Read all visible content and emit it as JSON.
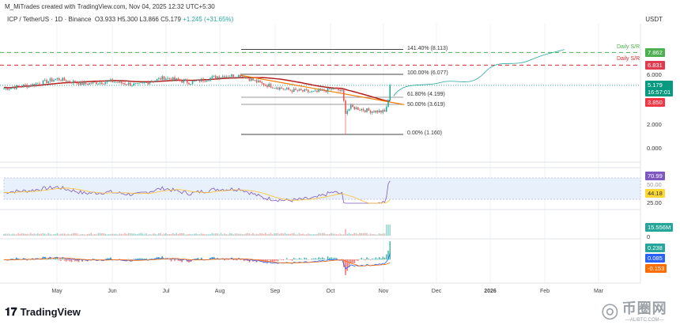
{
  "header": {
    "credit": "M_MiTrades created with TradingView.com, Nov 04, 2025 12:32 UTC+5:30",
    "symbol": "ICP / TetherUS · 1D · Binance",
    "open": "O3.933",
    "high": "H5.300",
    "low": "L3.866",
    "close": "C5.179",
    "change": "+1.245 (+31.65%)",
    "currency": "USDT"
  },
  "price_axis": {
    "labels": [
      "6.000",
      "2.000",
      "0.000"
    ],
    "tags": {
      "sr_green": "7.862",
      "sr_red": "6.831",
      "last": "5.179",
      "countdown": "16:57:01",
      "prev": "3.850"
    }
  },
  "sr_labels": {
    "green": "Daily S/R",
    "red": "Daily S/R"
  },
  "fib_labels": [
    "141.40% (8.113)",
    "100.00% (6.077)",
    "61.80% (4.199)",
    "50.00% (3.619)",
    "0.00% (1.160)"
  ],
  "rsi": {
    "value": "70.99",
    "ma": "44.18",
    "axis": [
      "50.00",
      "25.00"
    ]
  },
  "volume": {
    "value": "15.556M",
    "axis": "0"
  },
  "macd": {
    "hist": "0.238",
    "macd": "0.085",
    "signal": "-0.153"
  },
  "time_axis": [
    "May",
    "Jun",
    "Jul",
    "Aug",
    "Sep",
    "Oct",
    "Nov",
    "Dec",
    "2026",
    "Feb",
    "Mar"
  ],
  "brand": {
    "name": "TradingView",
    "watermark_cn": "币圈网",
    "watermark_en": "—ALIBTC.COM—"
  },
  "colors": {
    "up": "#26a69a",
    "down": "#ef5350",
    "ma": "#b71c1c",
    "trend": "#f57c00",
    "sr_green": "#4caf50",
    "sr_red": "#d32f2f",
    "rsi": "#7e57c2"
  },
  "chart_data": {
    "type": "candlestick",
    "symbol": "ICP/USDT",
    "timeframe": "1D",
    "price_path": [
      [
        0,
        4.9
      ],
      [
        15,
        5.2
      ],
      [
        30,
        5.7
      ],
      [
        45,
        5.3
      ],
      [
        60,
        5.5
      ],
      [
        75,
        5.2
      ],
      [
        90,
        5.8
      ],
      [
        105,
        5.4
      ],
      [
        120,
        5.9
      ],
      [
        133,
        6.0
      ],
      [
        145,
        5.3
      ],
      [
        160,
        4.8
      ],
      [
        175,
        4.6
      ],
      [
        185,
        4.9
      ],
      [
        190,
        4.7
      ],
      [
        192,
        3.0
      ],
      [
        195,
        3.4
      ],
      [
        205,
        3.1
      ],
      [
        214,
        3.0
      ],
      [
        216,
        3.93
      ],
      [
        217,
        5.179
      ]
    ],
    "fib": [
      {
        "level": "141.40%",
        "price": 8.113
      },
      {
        "level": "100.00%",
        "price": 6.077
      },
      {
        "level": "61.80%",
        "price": 4.199
      },
      {
        "level": "50.00%",
        "price": 3.619
      },
      {
        "level": "0.00%",
        "price": 1.16
      }
    ],
    "support_resistance": [
      7.862,
      6.831
    ],
    "last_price": 5.179,
    "ylim": [
      0,
      8.5
    ]
  }
}
